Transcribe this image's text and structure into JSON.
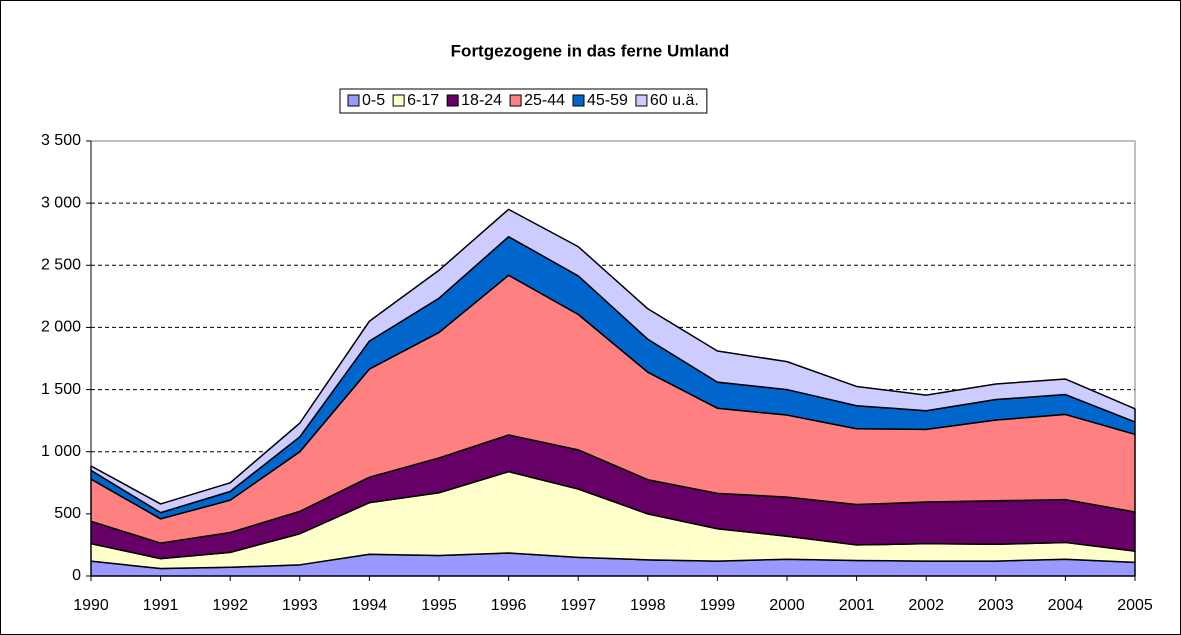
{
  "chart_data": {
    "type": "stacked_area",
    "title": "Fortgezogene in das ferne Umland",
    "categories": [
      "1990",
      "1991",
      "1992",
      "1993",
      "1994",
      "1995",
      "1996",
      "1997",
      "1998",
      "1999",
      "2000",
      "2001",
      "2002",
      "2003",
      "2004",
      "2005"
    ],
    "series": [
      {
        "name": "0-5",
        "color": "#9999ff",
        "values": [
          120,
          60,
          70,
          90,
          175,
          165,
          185,
          150,
          130,
          120,
          135,
          125,
          120,
          120,
          135,
          110
        ]
      },
      {
        "name": "6-17",
        "color": "#ffffcc",
        "values": [
          140,
          80,
          120,
          250,
          415,
          505,
          655,
          550,
          370,
          260,
          185,
          125,
          140,
          135,
          135,
          90
        ]
      },
      {
        "name": "18-24",
        "color": "#660066",
        "values": [
          180,
          125,
          160,
          180,
          205,
          280,
          295,
          315,
          275,
          285,
          315,
          325,
          335,
          350,
          345,
          315
        ]
      },
      {
        "name": "25-44",
        "color": "#ff8080",
        "values": [
          340,
          195,
          260,
          480,
          870,
          1010,
          1285,
          1090,
          865,
          685,
          660,
          610,
          585,
          650,
          685,
          625
        ]
      },
      {
        "name": "45-59",
        "color": "#0066cc",
        "values": [
          70,
          50,
          70,
          120,
          225,
          275,
          310,
          310,
          265,
          210,
          205,
          185,
          150,
          165,
          160,
          100
        ]
      },
      {
        "name": "60 u.ä.",
        "color": "#ccccff",
        "values": [
          35,
          70,
          70,
          110,
          160,
          225,
          220,
          235,
          245,
          250,
          225,
          155,
          125,
          125,
          125,
          105
        ]
      }
    ],
    "ylim": [
      0,
      3500
    ],
    "yticks": [
      0,
      500,
      {
        "value": 1000,
        "label": "1 000"
      },
      {
        "value": 1500,
        "label": "1 500"
      },
      {
        "value": 2000,
        "label": "2 000"
      },
      {
        "value": 2500,
        "label": "2 500"
      },
      {
        "value": 3000,
        "label": "3 000"
      },
      {
        "value": 3500,
        "label": "3 500"
      }
    ],
    "grid": true,
    "legend": "top"
  }
}
